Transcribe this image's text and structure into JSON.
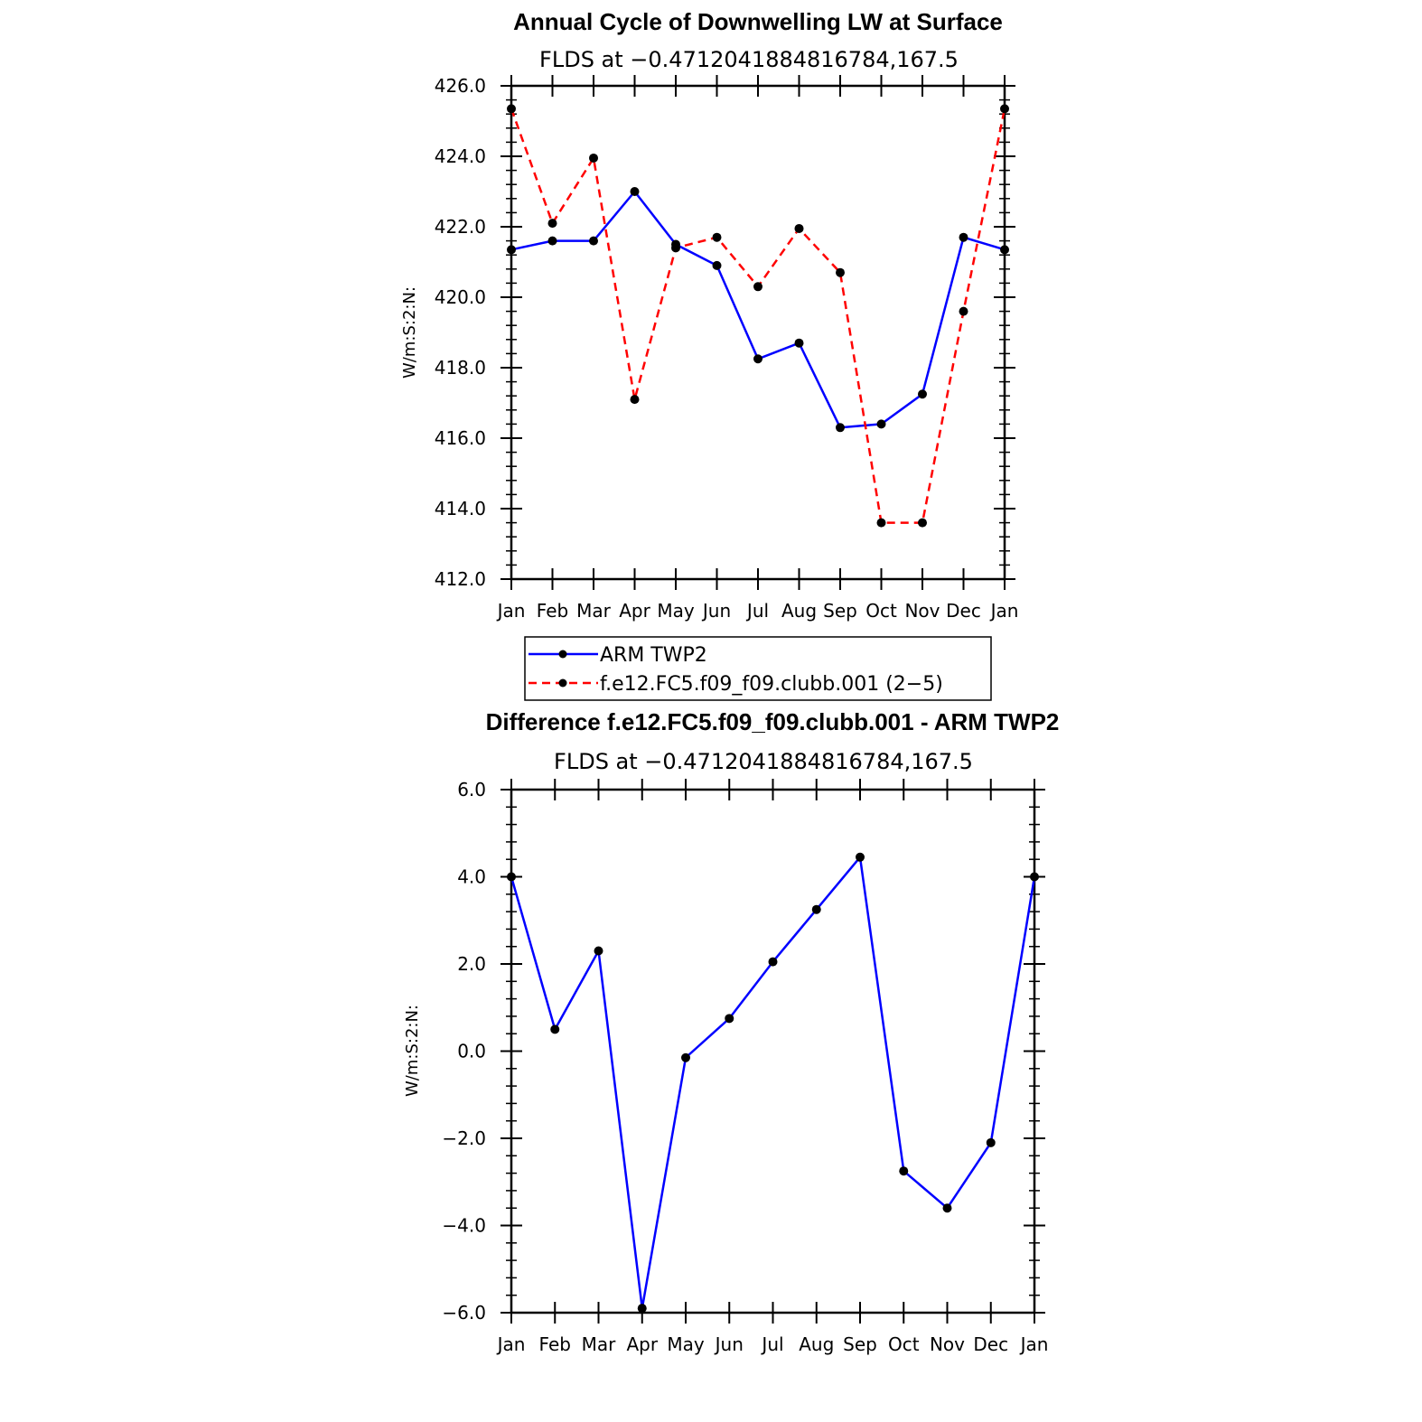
{
  "chart_data": [
    {
      "type": "line",
      "title": "Annual Cycle of Downwelling LW at Surface",
      "subtitle": "FLDS at −0.4712041884816784,167.5",
      "ylabel": "W/m:S:2:N:",
      "categories": [
        "Jan",
        "Feb",
        "Mar",
        "Apr",
        "May",
        "Jun",
        "Jul",
        "Aug",
        "Sep",
        "Oct",
        "Nov",
        "Dec",
        "Jan"
      ],
      "ylim": [
        412.0,
        426.0
      ],
      "yticks": [
        "412.0",
        "414.0",
        "416.0",
        "418.0",
        "420.0",
        "422.0",
        "424.0",
        "426.0"
      ],
      "series": [
        {
          "name": "ARM TWP2",
          "color": "#0000ff",
          "dash": "solid",
          "values": [
            421.35,
            421.6,
            421.6,
            423.0,
            421.5,
            420.9,
            418.25,
            418.7,
            416.3,
            416.4,
            417.25,
            421.7,
            421.35
          ]
        },
        {
          "name": "f.e12.FC5.f09_f09.clubb.001 (2−5)",
          "color": "#ff0000",
          "dash": "dashed",
          "values": [
            425.35,
            422.1,
            423.95,
            417.1,
            421.4,
            421.7,
            420.3,
            421.95,
            420.7,
            413.6,
            413.6,
            419.6,
            425.35
          ]
        }
      ],
      "legend_position": "bottom",
      "grid": false
    },
    {
      "type": "line",
      "title": "Difference f.e12.FC5.f09_f09.clubb.001 - ARM TWP2",
      "subtitle": "FLDS at −0.4712041884816784,167.5",
      "ylabel": "W/m:S:2:N:",
      "categories": [
        "Jan",
        "Feb",
        "Mar",
        "Apr",
        "May",
        "Jun",
        "Jul",
        "Aug",
        "Sep",
        "Oct",
        "Nov",
        "Dec",
        "Jan"
      ],
      "ylim": [
        -6.0,
        6.0
      ],
      "yticks": [
        "−6.0",
        "−4.0",
        "−2.0",
        "0.0",
        "2.0",
        "4.0",
        "6.0"
      ],
      "series": [
        {
          "color": "#0000ff",
          "dash": "solid",
          "values": [
            4.0,
            0.5,
            2.3,
            -5.9,
            -0.15,
            0.75,
            2.05,
            3.25,
            4.45,
            -2.75,
            -3.6,
            -2.1,
            4.0
          ]
        }
      ],
      "grid": false
    }
  ]
}
